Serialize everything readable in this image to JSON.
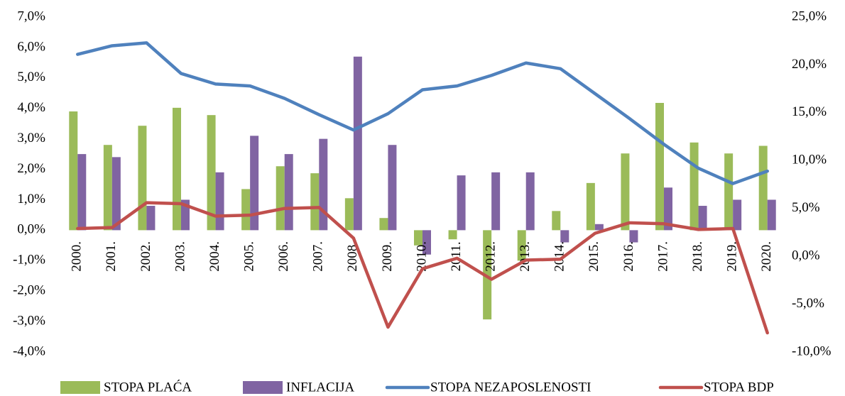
{
  "chart_data": {
    "type": "bar_line",
    "categories": [
      "2000.",
      "2001.",
      "2002.",
      "2003.",
      "2004.",
      "2005.",
      "2006.",
      "2007.",
      "2008.",
      "2009.",
      "2010.",
      "2011.",
      "2012.",
      "2013.",
      "2014.",
      "2015.",
      "2016.",
      "2017.",
      "2018.",
      "2019.",
      "2020."
    ],
    "series": [
      {
        "name": "STOPA PLAĆA",
        "type": "bar",
        "color": "#9bbb59",
        "values": [
          3.9,
          2.8,
          3.43,
          4.02,
          3.78,
          1.35,
          2.1,
          1.87,
          1.05,
          0.4,
          -0.5,
          -0.3,
          -2.93,
          -1.0,
          0.63,
          1.55,
          2.52,
          4.18,
          2.88,
          2.52,
          2.77
        ]
      },
      {
        "name": "INFLACIJA",
        "type": "bar",
        "color": "#8064a2",
        "values": [
          2.5,
          2.4,
          0.8,
          1.0,
          1.9,
          3.1,
          2.5,
          3.0,
          5.7,
          2.8,
          -0.8,
          1.8,
          1.9,
          1.9,
          -0.4,
          0.2,
          -0.4,
          1.4,
          0.8,
          1.0,
          1.0
        ]
      },
      {
        "name": "STOPA NEZAPOSLENOSTI",
        "type": "line",
        "axis": "y2",
        "color": "#4f81bd",
        "values": [
          21.1,
          22.0,
          22.3,
          19.1,
          18.0,
          17.8,
          16.5,
          14.8,
          13.2,
          14.9,
          17.4,
          17.8,
          18.9,
          20.2,
          19.6,
          17.0,
          14.4,
          11.7,
          9.2,
          7.6,
          8.9
        ]
      },
      {
        "name": "STOPA BDP",
        "type": "line",
        "axis": "y2",
        "color": "#c0504d",
        "values": [
          2.9,
          3.0,
          5.6,
          5.5,
          4.2,
          4.3,
          5.0,
          5.1,
          1.9,
          -7.4,
          -1.3,
          -0.2,
          -2.4,
          -0.4,
          -0.3,
          2.4,
          3.5,
          3.4,
          2.8,
          2.9,
          -8.0
        ]
      }
    ],
    "ylim": [
      -4,
      7
    ],
    "yticks": [
      {
        "value": -4,
        "label": "-4,0%"
      },
      {
        "value": -3,
        "label": "-3,0%"
      },
      {
        "value": -2,
        "label": "-2,0%"
      },
      {
        "value": -1,
        "label": "-1,0%"
      },
      {
        "value": 0,
        "label": "0,0%"
      },
      {
        "value": 1,
        "label": "1,0%"
      },
      {
        "value": 2,
        "label": "2,0%"
      },
      {
        "value": 3,
        "label": "3,0%"
      },
      {
        "value": 4,
        "label": "4,0%"
      },
      {
        "value": 5,
        "label": "5,0%"
      },
      {
        "value": 6,
        "label": "6,0%"
      },
      {
        "value": 7,
        "label": "7,0%"
      }
    ],
    "y2lim": [
      -10,
      25
    ],
    "y2ticks": [
      {
        "value": -10,
        "label": "-10,0%"
      },
      {
        "value": -5,
        "label": "-5,0%"
      },
      {
        "value": 0,
        "label": "0,0%"
      },
      {
        "value": 5,
        "label": "5,0%"
      },
      {
        "value": 10,
        "label": "10,0%"
      },
      {
        "value": 15,
        "label": "15,0%"
      },
      {
        "value": 20,
        "label": "20,0%"
      },
      {
        "value": 25,
        "label": "25,0%"
      }
    ],
    "grid": false,
    "legend": "bottom"
  }
}
